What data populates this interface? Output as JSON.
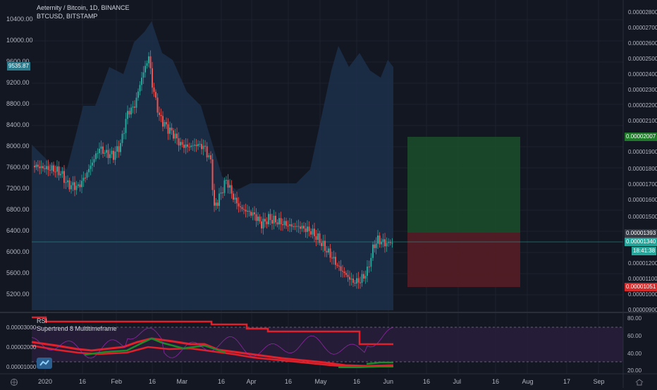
{
  "header": {
    "symbol_line": "Aeternity / Bitcoin, 1D, BINANCE",
    "overlay_line": "BTCUSD, BITSTAMP"
  },
  "left_axis": {
    "ticks": [
      "10400.00",
      "10000.00",
      "9600.00",
      "9200.00",
      "8800.00",
      "8400.00",
      "8000.00",
      "7600.00",
      "7200.00",
      "6800.00",
      "6400.00",
      "6000.00",
      "5600.00",
      "5200.00"
    ],
    "price_tag": "9535.87"
  },
  "right_axis": {
    "ticks": [
      "0.00002800",
      "0.00002700",
      "0.00002600",
      "0.00002500",
      "0.00002400",
      "0.00002300",
      "0.00002200",
      "0.00002100",
      "0.00001900",
      "0.00001800",
      "0.00001700",
      "0.00001600",
      "0.00001500",
      "0.00001200",
      "0.00001100",
      "0.00001000",
      "0.00000900"
    ],
    "target_tag": "0.00002007",
    "last_tag": "0.00001393",
    "current_tag": "0.00001340",
    "countdown_tag": "18:41:38",
    "stop_tag": "0.00001051"
  },
  "indicator": {
    "rsi_label": "RSI",
    "supertrend_label": "Supertrend 8 Multitimeframe",
    "left_ticks": [
      "0.00003000",
      "0.00002000",
      "0.00001000"
    ],
    "right_ticks": [
      "80.00",
      "60.00",
      "40.00",
      "20.00"
    ]
  },
  "x_axis": {
    "ticks": [
      "2020",
      "16",
      "Feb",
      "16",
      "Mar",
      "16",
      "Apr",
      "16",
      "May",
      "16",
      "Jun",
      "16",
      "Jul",
      "16",
      "Aug",
      "17",
      "Sep"
    ]
  },
  "colors": {
    "background": "#131722",
    "btc_area": "#1e3350",
    "up_candle": "#26a69a",
    "down_candle": "#ef5350",
    "profit_zone": "#1b4d2a",
    "loss_zone": "#5a1c24",
    "rsi_band": "#2a1f3d",
    "supertrend_red": "#e0202a",
    "supertrend_green": "#1d8a2a"
  },
  "icons": {
    "logo": "tradingview-logo-icon",
    "timezone": "globe-icon",
    "calendar": "calendar-icon"
  }
}
